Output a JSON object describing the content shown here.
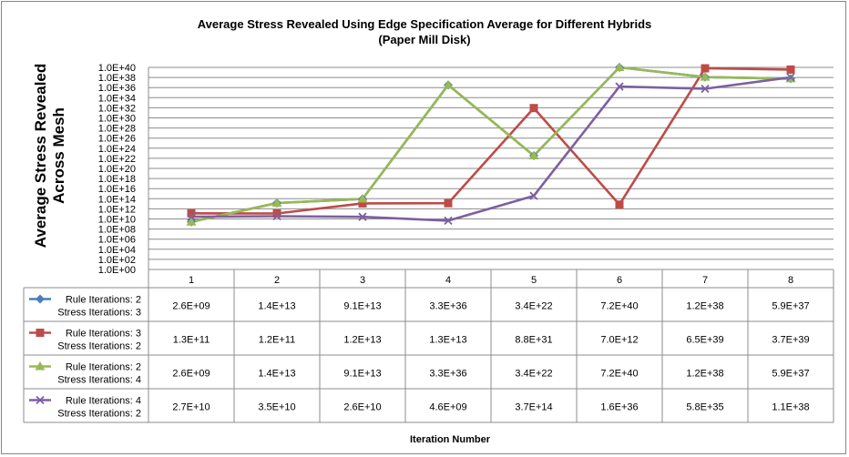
{
  "chart_data": {
    "type": "line",
    "title": "Average Stress Revealed Using Edge Specification Average for Different Hybrids",
    "subtitle": "(Paper Mill Disk)",
    "ylabel": "Average Stress Revealed Across Mesh",
    "ylabel_lines": [
      "Average Stress Revealed",
      "Across Mesh"
    ],
    "xlabel": "Iteration Number",
    "y_scale": "log",
    "ylim": [
      1,
      1e+40
    ],
    "y_ticks": [
      "1.0E+00",
      "1.0E+02",
      "1.0E+04",
      "1.0E+06",
      "1.0E+08",
      "1.0E+10",
      "1.0E+12",
      "1.0E+14",
      "1.0E+16",
      "1.0E+18",
      "1.0E+20",
      "1.0E+22",
      "1.0E+24",
      "1.0E+26",
      "1.0E+28",
      "1.0E+30",
      "1.0E+32",
      "1.0E+34",
      "1.0E+36",
      "1.0E+38",
      "1.0E+40"
    ],
    "grid": true,
    "legend": "data-table",
    "categories": [
      "1",
      "2",
      "3",
      "4",
      "5",
      "6",
      "7",
      "8"
    ],
    "series": [
      {
        "name_lines": [
          "Rule Iterations: 2",
          "Stress Iterations: 3"
        ],
        "color": "#4a7ebb",
        "marker": "diamond",
        "labels": [
          "2.6E+09",
          "1.4E+13",
          "9.1E+13",
          "3.3E+36",
          "3.4E+22",
          "7.2E+40",
          "1.2E+38",
          "5.9E+37"
        ],
        "values": [
          2600000000.0,
          14000000000000.0,
          91000000000000.0,
          3.3e+36,
          3.4e+22,
          7.2e+40,
          1.2e+38,
          5.9e+37
        ]
      },
      {
        "name_lines": [
          "Rule Iterations: 3",
          "Stress Iterations: 2"
        ],
        "color": "#be4b48",
        "marker": "square",
        "labels": [
          "1.3E+11",
          "1.2E+11",
          "1.2E+13",
          "1.3E+13",
          "8.8E+31",
          "7.0E+12",
          "6.5E+39",
          "3.7E+39"
        ],
        "values": [
          130000000000.0,
          120000000000.0,
          12000000000000.0,
          13000000000000.0,
          8.8e+31,
          7000000000000.0,
          6.5e+39,
          3.7e+39
        ]
      },
      {
        "name_lines": [
          "Rule Iterations: 2",
          "Stress Iterations: 4"
        ],
        "color": "#98b954",
        "marker": "triangle",
        "labels": [
          "2.6E+09",
          "1.4E+13",
          "9.1E+13",
          "3.3E+36",
          "3.4E+22",
          "7.2E+40",
          "1.2E+38",
          "5.9E+37"
        ],
        "values": [
          2600000000.0,
          14000000000000.0,
          91000000000000.0,
          3.3e+36,
          3.4e+22,
          7.2e+40,
          1.2e+38,
          5.9e+37
        ]
      },
      {
        "name_lines": [
          "Rule Iterations: 4",
          "Stress Iterations: 2"
        ],
        "color": "#7d60a0",
        "marker": "x",
        "labels": [
          "2.7E+10",
          "3.5E+10",
          "2.6E+10",
          "4.6E+09",
          "3.7E+14",
          "1.6E+36",
          "5.8E+35",
          "1.1E+38"
        ],
        "values": [
          27000000000.0,
          35000000000.0,
          26000000000.0,
          4600000000.0,
          370000000000000.0,
          1.6e+36,
          5.8e+35,
          1.1e+38
        ]
      }
    ]
  }
}
